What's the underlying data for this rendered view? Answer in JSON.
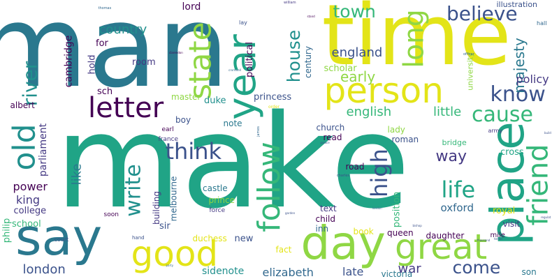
{
  "palette": {
    "yellow": "#e3e418",
    "lime": "#8fd744",
    "green": "#35b779",
    "teal": "#20a486",
    "cyan": "#21908d",
    "blue": "#2a788e",
    "slate": "#31688e",
    "indigo": "#3b528b",
    "violet": "#443983",
    "purple": "#440154"
  },
  "words": [
    {
      "id": "man",
      "text": "man",
      "color": "blue"
    },
    {
      "id": "time",
      "text": "time",
      "color": "yellow"
    },
    {
      "id": "make",
      "text": "make",
      "color": "teal"
    },
    {
      "id": "say",
      "text": "say",
      "color": "blue"
    },
    {
      "id": "person",
      "text": "person",
      "color": "yellow"
    },
    {
      "id": "day",
      "text": "day",
      "color": "lime"
    },
    {
      "id": "place",
      "text": "place",
      "color": "teal"
    },
    {
      "id": "good",
      "text": "good",
      "color": "yellow"
    },
    {
      "id": "great",
      "text": "great",
      "color": "lime"
    },
    {
      "id": "year",
      "text": "year",
      "color": "teal"
    },
    {
      "id": "letter",
      "text": "letter",
      "color": "purple"
    },
    {
      "id": "follow",
      "text": "follow",
      "color": "green"
    },
    {
      "id": "state",
      "text": "state",
      "color": "lime"
    },
    {
      "id": "old",
      "text": "old",
      "color": "cyan"
    },
    {
      "id": "long",
      "text": "long",
      "color": "lime"
    },
    {
      "id": "friend",
      "text": "friend",
      "color": "green"
    },
    {
      "id": "think",
      "text": "think",
      "color": "indigo"
    },
    {
      "id": "life",
      "text": "life",
      "color": "teal"
    },
    {
      "id": "high",
      "text": "high",
      "color": "indigo"
    },
    {
      "id": "write",
      "text": "write",
      "color": "cyan"
    },
    {
      "id": "know",
      "text": "know",
      "color": "indigo"
    },
    {
      "id": "cause",
      "text": "cause",
      "color": "green"
    },
    {
      "id": "believe",
      "text": "believe",
      "color": "indigo"
    },
    {
      "id": "come",
      "text": "come",
      "color": "indigo"
    },
    {
      "id": "river",
      "text": "river",
      "color": "cyan"
    },
    {
      "id": "town",
      "text": "town",
      "color": "green"
    },
    {
      "id": "house",
      "text": "house",
      "color": "cyan"
    },
    {
      "id": "majesty",
      "text": "majesty",
      "color": "blue"
    },
    {
      "id": "country",
      "text": "country",
      "color": "cyan"
    },
    {
      "id": "england",
      "text": "england",
      "color": "indigo"
    },
    {
      "id": "english",
      "text": "english",
      "color": "green"
    },
    {
      "id": "little",
      "text": "little",
      "color": "green"
    },
    {
      "id": "way",
      "text": "way",
      "color": "violet"
    },
    {
      "id": "early",
      "text": "early",
      "color": "lime"
    },
    {
      "id": "power",
      "text": "power",
      "color": "purple"
    },
    {
      "id": "king",
      "text": "king",
      "color": "violet"
    },
    {
      "id": "london",
      "text": "london",
      "color": "indigo"
    },
    {
      "id": "like",
      "text": "like",
      "color": "blue"
    },
    {
      "id": "policy",
      "text": "policy",
      "color": "violet"
    },
    {
      "id": "oxford",
      "text": "oxford",
      "color": "slate"
    },
    {
      "id": "war",
      "text": "war",
      "color": "violet"
    },
    {
      "id": "elizabeth",
      "text": "elizabeth",
      "color": "slate"
    },
    {
      "id": "sidenote",
      "text": "sidenote",
      "color": "cyan"
    },
    {
      "id": "late",
      "text": "late",
      "color": "indigo"
    },
    {
      "id": "victoria",
      "text": "victoria",
      "color": "blue"
    },
    {
      "id": "son",
      "text": "son",
      "color": "blue"
    },
    {
      "id": "lord",
      "text": "lord",
      "color": "purple"
    },
    {
      "id": "cambridge",
      "text": "cambridge",
      "color": "purple"
    },
    {
      "id": "parliament",
      "text": "parliament",
      "color": "violet"
    },
    {
      "id": "college",
      "text": "college",
      "color": "violet"
    },
    {
      "id": "school",
      "text": "school",
      "color": "green"
    },
    {
      "id": "philip",
      "text": "philip",
      "color": "green"
    },
    {
      "id": "albert",
      "text": "albert",
      "color": "purple"
    },
    {
      "id": "sch",
      "text": "sch",
      "color": "purple"
    },
    {
      "id": "room",
      "text": "room",
      "color": "violet"
    },
    {
      "id": "hold",
      "text": "hold",
      "color": "violet"
    },
    {
      "id": "for",
      "text": "for",
      "color": "purple"
    },
    {
      "id": "political",
      "text": "political",
      "color": "purple"
    },
    {
      "id": "century",
      "text": "century",
      "color": "slate"
    },
    {
      "id": "scholar",
      "text": "scholar",
      "color": "lime"
    },
    {
      "id": "university",
      "text": "university",
      "color": "lime"
    },
    {
      "id": "illustration",
      "text": "illustration",
      "color": "indigo"
    },
    {
      "id": "hall",
      "text": "hall",
      "color": "slate"
    },
    {
      "id": "princess",
      "text": "princess",
      "color": "indigo"
    },
    {
      "id": "master",
      "text": "master",
      "color": "lime"
    },
    {
      "id": "duke",
      "text": "duke",
      "color": "cyan"
    },
    {
      "id": "boy",
      "text": "boy",
      "color": "indigo"
    },
    {
      "id": "note",
      "text": "note",
      "color": "blue"
    },
    {
      "id": "church",
      "text": "church",
      "color": "indigo"
    },
    {
      "id": "read",
      "text": "read",
      "color": "purple"
    },
    {
      "id": "lady",
      "text": "lady",
      "color": "lime"
    },
    {
      "id": "roman",
      "text": "roman",
      "color": "indigo"
    },
    {
      "id": "bridge",
      "text": "bridge",
      "color": "green"
    },
    {
      "id": "cross",
      "text": "cross",
      "color": "teal"
    },
    {
      "id": "army",
      "text": "army",
      "color": "violet"
    },
    {
      "id": "road",
      "text": "road",
      "color": "purple"
    },
    {
      "id": "earl",
      "text": "earl",
      "color": "purple"
    },
    {
      "id": "france",
      "text": "france",
      "color": "violet"
    },
    {
      "id": "building",
      "text": "building",
      "color": "violet"
    },
    {
      "id": "melbourne",
      "text": "melbourne",
      "color": "slate"
    },
    {
      "id": "castle",
      "text": "castle",
      "color": "blue"
    },
    {
      "id": "prince",
      "text": "prince",
      "color": "lime"
    },
    {
      "id": "force",
      "text": "force",
      "color": "violet"
    },
    {
      "id": "sir",
      "text": "sir",
      "color": "indigo"
    },
    {
      "id": "duchess",
      "text": "duchess",
      "color": "yellow"
    },
    {
      "id": "new",
      "text": "new",
      "color": "indigo"
    },
    {
      "id": "fact",
      "text": "fact",
      "color": "yellow"
    },
    {
      "id": "text",
      "text": "text",
      "color": "violet"
    },
    {
      "id": "child",
      "text": "child",
      "color": "purple"
    },
    {
      "id": "inn",
      "text": "inn",
      "color": "slate"
    },
    {
      "id": "book",
      "text": "book",
      "color": "yellow"
    },
    {
      "id": "position",
      "text": "position",
      "color": "green"
    },
    {
      "id": "queen",
      "text": "queen",
      "color": "purple"
    },
    {
      "id": "daughter",
      "text": "daughter",
      "color": "purple"
    },
    {
      "id": "royal",
      "text": "royal",
      "color": "yellow"
    },
    {
      "id": "visit",
      "text": "visit",
      "color": "violet"
    },
    {
      "id": "mile",
      "text": "mile",
      "color": "purple"
    },
    {
      "id": "soon",
      "text": "soon",
      "color": "purple"
    },
    {
      "id": "court",
      "text": "court",
      "color": "indigo"
    },
    {
      "id": "hand",
      "text": "hand",
      "color": "indigo"
    },
    {
      "id": "thomas",
      "text": "thomas",
      "color": "slate"
    },
    {
      "id": "william",
      "text": "william",
      "color": "violet"
    },
    {
      "id": "lay",
      "text": "lay",
      "color": "indigo"
    },
    {
      "id": "order",
      "text": "order",
      "color": "yellow"
    },
    {
      "id": "charles",
      "text": "charles",
      "color": "indigo"
    },
    {
      "id": "james",
      "text": "james",
      "color": "slate"
    },
    {
      "id": "party",
      "text": "party",
      "color": "slate"
    },
    {
      "id": "garden",
      "text": "garden",
      "color": "indigo"
    },
    {
      "id": "officer",
      "text": "officer",
      "color": "slate"
    },
    {
      "id": "thousand",
      "text": "thousand",
      "color": "indigo"
    },
    {
      "id": "stand",
      "text": "stand",
      "color": "purple"
    },
    {
      "id": "cromwell",
      "text": "cromwell",
      "color": "slate"
    },
    {
      "id": "clarendon",
      "text": "clarendon",
      "color": "purple"
    },
    {
      "id": "palace",
      "text": "palace",
      "color": "indigo"
    },
    {
      "id": "build",
      "text": "build",
      "color": "indigo"
    },
    {
      "id": "regulat",
      "text": "regulat",
      "color": "indigo"
    },
    {
      "id": "bishop",
      "text": "bishop",
      "color": "indigo"
    },
    {
      "id": "london_small",
      "text": "london",
      "color": "slate"
    },
    {
      "id": "tenter",
      "text": "tenter",
      "color": "indigo"
    }
  ]
}
